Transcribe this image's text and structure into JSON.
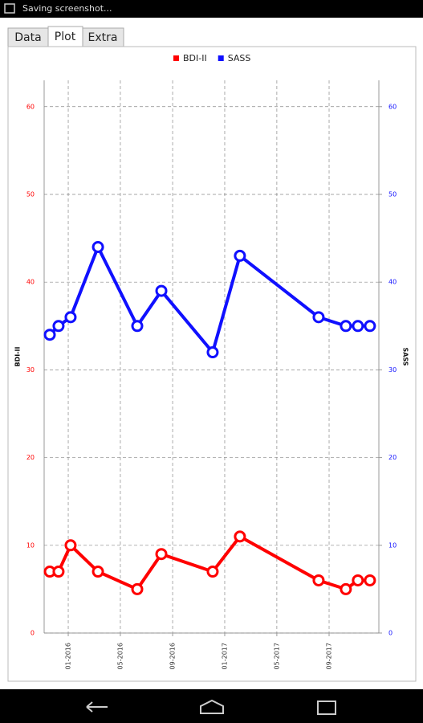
{
  "status_bar": {
    "text": "Saving screenshot..."
  },
  "tabs": [
    "Data",
    "Plot",
    "Extra"
  ],
  "chart_data": {
    "type": "line",
    "y_label": "BDI-II",
    "y2_label": "SASS",
    "x": [
      2015.882,
      2015.938,
      2016.015,
      2016.19,
      2016.441,
      2016.595,
      2016.923,
      2017.097,
      2017.6,
      2017.774,
      2017.851,
      2017.928
    ],
    "series": [
      {
        "name": "BDI-II",
        "color": "#ff0000",
        "values": [
          7,
          7,
          10,
          7,
          5,
          9,
          7,
          11,
          6,
          5,
          6,
          6
        ]
      },
      {
        "name": "SASS",
        "color": "#1010ff",
        "axis": "y2",
        "values": [
          34,
          35,
          36,
          44,
          35,
          39,
          32,
          43,
          36,
          35,
          35,
          35
        ]
      }
    ],
    "xlim": [
      2015.846,
      2017.985
    ],
    "xticks": [
      {
        "value": 2016.0,
        "label": "01-2016"
      },
      {
        "value": 2016.333,
        "label": "05-2016"
      },
      {
        "value": 2016.667,
        "label": "09-2016"
      },
      {
        "value": 2017.0,
        "label": "01-2017"
      },
      {
        "value": 2017.333,
        "label": "05-2017"
      },
      {
        "value": 2017.667,
        "label": "09-2017"
      }
    ],
    "ylim": [
      0,
      63
    ],
    "yticks": [
      0,
      10,
      20,
      30,
      40,
      50,
      60
    ],
    "y2lim": [
      0,
      63
    ],
    "y2ticks": [
      0,
      10,
      20,
      30,
      40,
      50,
      60
    ],
    "grid": true
  }
}
